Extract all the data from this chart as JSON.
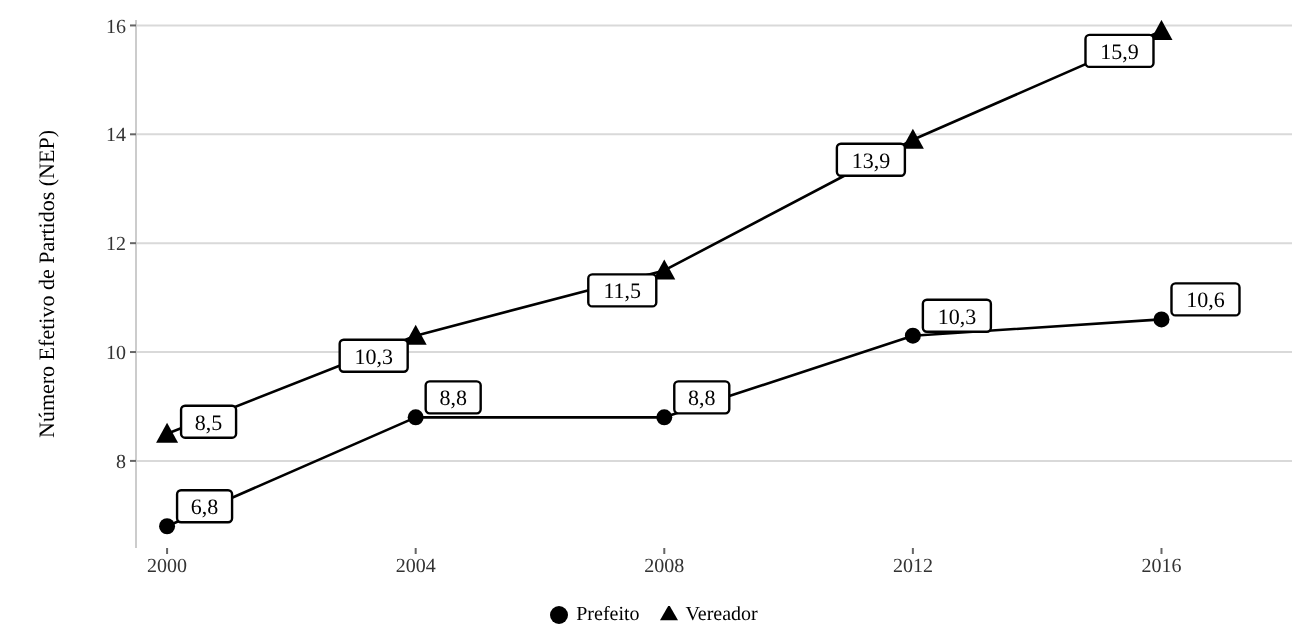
{
  "chart_data": {
    "type": "line",
    "ylabel": "Número Efetivo de Partidos (NEP)",
    "x": [
      2000,
      2004,
      2008,
      2012,
      2016
    ],
    "series": [
      {
        "name": "Prefeito",
        "color": "#000000",
        "marker": "circle",
        "values": [
          6.8,
          8.8,
          8.8,
          10.3,
          10.6
        ],
        "value_labels": [
          "6,8",
          "8,8",
          "8,8",
          "10,3",
          "10,6"
        ]
      },
      {
        "name": "Vereador",
        "color": "#000000",
        "marker": "triangle",
        "values": [
          8.5,
          10.3,
          11.5,
          13.9,
          15.9
        ],
        "value_labels": [
          "8,5",
          "10,3",
          "11,5",
          "13,9",
          "15,9"
        ]
      }
    ],
    "xlim": [
      1999.5,
      2018.1
    ],
    "xticks": [
      2000,
      2004,
      2008,
      2012,
      2016
    ],
    "ylim": [
      6.4,
      16.1
    ],
    "yticks": [
      8,
      10,
      12,
      14,
      16
    ],
    "grid": "y",
    "legend": "bottom"
  }
}
